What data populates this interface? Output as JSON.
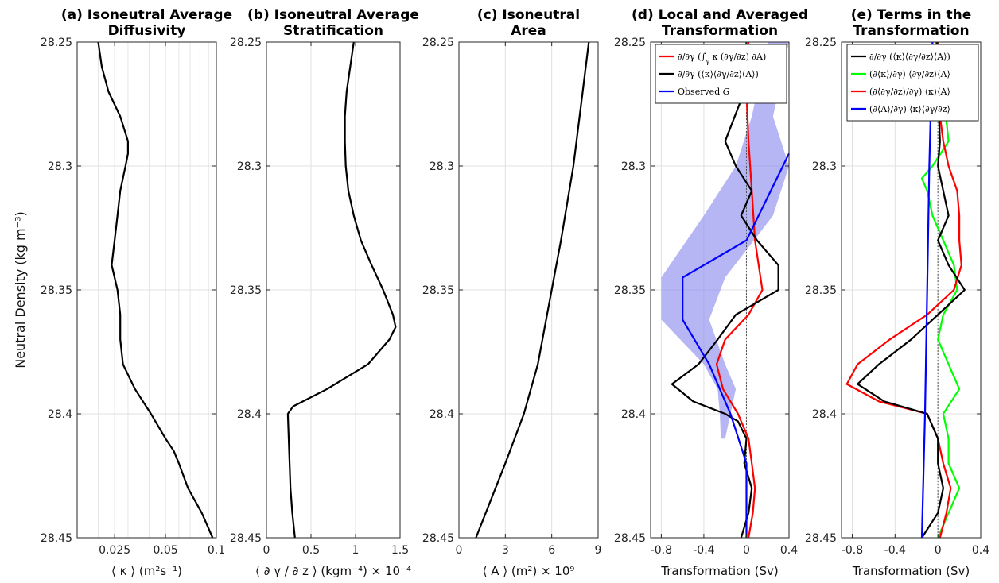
{
  "figure": {
    "ylabel": "Neutral Density (kg m⁻³)"
  },
  "chart_data": [
    {
      "id": "a",
      "type": "line",
      "title_lines": [
        "(a) Isoneutral Average",
        "Diffusivity"
      ],
      "xlabel": "⟨ κ ⟩ (m²s⁻¹)",
      "xscale": "log",
      "xlim": [
        0.015,
        0.1
      ],
      "xticks": [
        0.025,
        0.05,
        0.1
      ],
      "xtick_labels": [
        "0.025",
        "0.05",
        "0.1"
      ],
      "xminor_grid": [
        0.02,
        0.03,
        0.04,
        0.06,
        0.07,
        0.08,
        0.09
      ],
      "ylim": [
        28.25,
        28.45
      ],
      "yticks": [
        28.25,
        28.3,
        28.35,
        28.4,
        28.45
      ],
      "ytick_labels": [
        "28.25",
        "28.3",
        "28.35",
        "28.4",
        "28.45"
      ],
      "grid": true,
      "series": [
        {
          "color": "#000000",
          "y": [
            28.25,
            28.26,
            28.27,
            28.28,
            28.29,
            28.295,
            28.3,
            28.31,
            28.32,
            28.33,
            28.34,
            28.35,
            28.36,
            28.37,
            28.38,
            28.39,
            28.4,
            28.41,
            28.415,
            28.42,
            28.43,
            28.44,
            28.45
          ],
          "x": [
            0.02,
            0.021,
            0.023,
            0.027,
            0.03,
            0.03,
            0.029,
            0.027,
            0.026,
            0.025,
            0.024,
            0.026,
            0.027,
            0.027,
            0.028,
            0.033,
            0.041,
            0.05,
            0.056,
            0.06,
            0.068,
            0.082,
            0.095
          ]
        }
      ]
    },
    {
      "id": "b",
      "type": "line",
      "title_lines": [
        "(b) Isoneutral Average",
        "Stratification"
      ],
      "xlabel": "⟨ ∂ γ / ∂ z ⟩ (kgm⁻⁴) × 10⁻⁴",
      "xlim": [
        0,
        1.5
      ],
      "xticks": [
        0,
        0.5,
        1,
        1.5
      ],
      "xtick_labels": [
        "0",
        "0.5",
        "1",
        "1.5"
      ],
      "ylim": [
        28.25,
        28.45
      ],
      "yticks": [
        28.25,
        28.3,
        28.35,
        28.4,
        28.45
      ],
      "ytick_labels": [
        "28.25",
        "28.3",
        "28.35",
        "28.4",
        "28.45"
      ],
      "grid": true,
      "series": [
        {
          "color": "#000000",
          "y": [
            28.25,
            28.26,
            28.27,
            28.28,
            28.29,
            28.3,
            28.31,
            28.32,
            28.33,
            28.34,
            28.35,
            28.36,
            28.365,
            28.37,
            28.38,
            28.39,
            28.397,
            28.4,
            28.41,
            28.42,
            28.43,
            28.44,
            28.45
          ],
          "x": [
            0.98,
            0.94,
            0.9,
            0.88,
            0.88,
            0.89,
            0.92,
            0.98,
            1.06,
            1.18,
            1.31,
            1.42,
            1.45,
            1.38,
            1.14,
            0.68,
            0.3,
            0.24,
            0.25,
            0.26,
            0.27,
            0.29,
            0.32
          ]
        }
      ]
    },
    {
      "id": "c",
      "type": "line",
      "title_lines": [
        "(c) Isoneutral",
        "Area"
      ],
      "xlabel": "⟨ A ⟩ (m²) × 10⁹",
      "xlim": [
        0,
        9
      ],
      "xticks": [
        0,
        3,
        6,
        9
      ],
      "xtick_labels": [
        "0",
        "3",
        "6",
        "9"
      ],
      "ylim": [
        28.25,
        28.45
      ],
      "yticks": [
        28.25,
        28.3,
        28.35,
        28.4,
        28.45
      ],
      "ytick_labels": [
        "28.25",
        "28.3",
        "28.35",
        "28.4",
        "28.45"
      ],
      "grid": true,
      "series": [
        {
          "color": "#000000",
          "y": [
            28.25,
            28.27,
            28.3,
            28.33,
            28.36,
            28.38,
            28.4,
            28.42,
            28.45
          ],
          "x": [
            8.4,
            8.0,
            7.4,
            6.6,
            5.7,
            5.1,
            4.2,
            3.0,
            1.1
          ]
        }
      ]
    },
    {
      "id": "d",
      "type": "line",
      "title_lines": [
        "(d) Local and Averaged",
        "Transformation"
      ],
      "xlabel": "Transformation (Sv)",
      "xlim": [
        -0.9,
        0.4
      ],
      "xticks": [
        -0.8,
        -0.4,
        0,
        0.4
      ],
      "xtick_labels": [
        "-0.8",
        "-0.4",
        "0",
        "0.4"
      ],
      "ylim": [
        28.25,
        28.45
      ],
      "yticks": [
        28.25,
        28.3,
        28.35,
        28.4,
        28.45
      ],
      "ytick_labels": [
        "28.25",
        "28.3",
        "28.35",
        "28.4",
        "28.45"
      ],
      "grid": true,
      "zero_line": true,
      "legend": {
        "placement": "top-right",
        "entries": [
          {
            "color": "#ff0000",
            "label_parts": [
              {
                "t": "∂/∂γ (∫"
              },
              {
                "t": "γ",
                "sub": true
              },
              {
                "t": " κ (∂γ/∂z) ∂A)"
              }
            ]
          },
          {
            "color": "#000000",
            "label_parts": [
              {
                "t": "∂/∂γ (⟨κ⟩⟨∂γ/∂z⟩⟨A⟩)"
              }
            ]
          },
          {
            "color": "#0000ff",
            "label_parts": [
              {
                "t": "Observed "
              },
              {
                "t": "G",
                "italic": true
              }
            ]
          }
        ]
      },
      "band": {
        "color": "#8f8ff0",
        "y": [
          28.25,
          28.28,
          28.3,
          28.32,
          28.345,
          28.362,
          28.38,
          28.39,
          28.4,
          28.41
        ],
        "xlow": [
          0.2,
          0.05,
          -0.1,
          -0.4,
          -0.8,
          -0.8,
          -0.4,
          -0.27,
          -0.25,
          -0.24
        ],
        "xhigh": [
          0.4,
          0.4,
          0.4,
          0.4,
          0.4,
          0.4,
          0.4,
          0.4,
          0.4,
          0.4
        ],
        "xhigh_fix": [
          0.4,
          0.25,
          0.4,
          0.25,
          -0.2,
          -0.35,
          -0.2,
          -0.1,
          -0.15,
          -0.2
        ]
      },
      "series": [
        {
          "color": "#ff0000",
          "y": [
            28.25,
            28.27,
            28.29,
            28.31,
            28.33,
            28.35,
            28.36,
            28.37,
            28.38,
            28.39,
            28.4,
            28.41,
            28.42,
            28.43,
            28.44,
            28.45
          ],
          "x": [
            0.02,
            0.0,
            0.02,
            0.05,
            0.08,
            0.15,
            0.02,
            -0.2,
            -0.28,
            -0.22,
            -0.08,
            0.02,
            0.05,
            0.08,
            0.06,
            0.02
          ]
        },
        {
          "color": "#000000",
          "y": [
            28.25,
            28.27,
            28.29,
            28.3,
            28.31,
            28.32,
            28.33,
            28.34,
            28.35,
            28.36,
            28.37,
            28.38,
            28.388,
            28.395,
            28.4,
            28.403,
            28.41,
            28.42,
            28.43,
            28.44,
            28.45
          ],
          "x": [
            0.0,
            -0.02,
            -0.2,
            -0.1,
            0.05,
            -0.05,
            0.1,
            0.3,
            0.3,
            -0.1,
            -0.27,
            -0.45,
            -0.7,
            -0.5,
            -0.2,
            -0.08,
            0.0,
            -0.02,
            0.05,
            0.02,
            -0.05
          ]
        },
        {
          "color": "#0000ff",
          "y": [
            28.295,
            28.33,
            28.345,
            28.362,
            28.38,
            28.4,
            28.42,
            28.45
          ],
          "x": [
            0.4,
            0.0,
            -0.6,
            -0.6,
            -0.35,
            -0.15,
            0.0,
            0.0
          ]
        }
      ]
    },
    {
      "id": "e",
      "type": "line",
      "title_lines": [
        "(e) Terms in the",
        "Transformation"
      ],
      "xlabel": "Transformation (Sv)",
      "xlim": [
        -0.9,
        0.4
      ],
      "xticks": [
        -0.8,
        -0.4,
        0,
        0.4
      ],
      "xtick_labels": [
        "-0.8",
        "-0.4",
        "0",
        "0.4"
      ],
      "ylim": [
        28.25,
        28.45
      ],
      "yticks": [
        28.25,
        28.3,
        28.35,
        28.4,
        28.45
      ],
      "ytick_labels": [
        "28.25",
        "28.3",
        "28.35",
        "28.4",
        "28.45"
      ],
      "grid": true,
      "zero_line": true,
      "legend": {
        "placement": "top-right",
        "entries": [
          {
            "color": "#000000",
            "label_parts": [
              {
                "t": "∂/∂γ (⟨κ⟩⟨∂γ/∂z⟩⟨A⟩)"
              }
            ]
          },
          {
            "color": "#00ff00",
            "label_parts": [
              {
                "t": "(∂⟨κ⟩/∂γ) ⟨∂γ/∂z⟩⟨A⟩"
              }
            ]
          },
          {
            "color": "#ff0000",
            "label_parts": [
              {
                "t": "(∂⟨∂γ/∂z⟩/∂γ) ⟨κ⟩⟨A⟩"
              }
            ]
          },
          {
            "color": "#0000ff",
            "label_parts": [
              {
                "t": "(∂⟨A⟩/∂γ) ⟨κ⟩⟨∂γ/∂z⟩"
              }
            ]
          }
        ]
      },
      "series": [
        {
          "color": "#00ff00",
          "y": [
            28.25,
            28.27,
            28.29,
            28.3,
            28.305,
            28.31,
            28.32,
            28.33,
            28.34,
            28.35,
            28.36,
            28.37,
            28.38,
            28.39,
            28.4,
            28.41,
            28.42,
            28.43,
            28.44,
            28.45
          ],
          "x": [
            -0.02,
            0.05,
            0.1,
            -0.05,
            -0.15,
            -0.1,
            -0.05,
            0.05,
            0.15,
            0.18,
            0.05,
            0.0,
            0.1,
            0.2,
            0.05,
            0.1,
            0.1,
            0.2,
            0.1,
            0.0
          ]
        },
        {
          "color": "#ff0000",
          "y": [
            28.25,
            28.27,
            28.29,
            28.3,
            28.31,
            28.32,
            28.33,
            28.34,
            28.35,
            28.36,
            28.37,
            28.38,
            28.388,
            28.395,
            28.4,
            28.41,
            28.42,
            28.43,
            28.44,
            28.45
          ],
          "x": [
            0.0,
            -0.01,
            0.05,
            0.1,
            0.18,
            0.2,
            0.2,
            0.22,
            0.15,
            -0.1,
            -0.45,
            -0.75,
            -0.85,
            -0.55,
            -0.1,
            0.0,
            0.05,
            0.12,
            0.08,
            0.02
          ]
        },
        {
          "color": "#000000",
          "y": [
            28.25,
            28.27,
            28.29,
            28.3,
            28.31,
            28.32,
            28.33,
            28.34,
            28.35,
            28.36,
            28.37,
            28.38,
            28.388,
            28.395,
            28.4,
            28.41,
            28.42,
            28.43,
            28.44,
            28.45
          ],
          "x": [
            -0.01,
            0.0,
            0.02,
            0.0,
            0.05,
            0.1,
            0.0,
            0.1,
            0.25,
            0.0,
            -0.25,
            -0.55,
            -0.75,
            -0.5,
            -0.1,
            0.0,
            0.0,
            0.05,
            0.0,
            -0.15
          ]
        },
        {
          "color": "#0000ff",
          "y": [
            28.25,
            28.3,
            28.35,
            28.4,
            28.45
          ],
          "x": [
            -0.05,
            -0.08,
            -0.1,
            -0.12,
            -0.15
          ]
        }
      ]
    }
  ]
}
